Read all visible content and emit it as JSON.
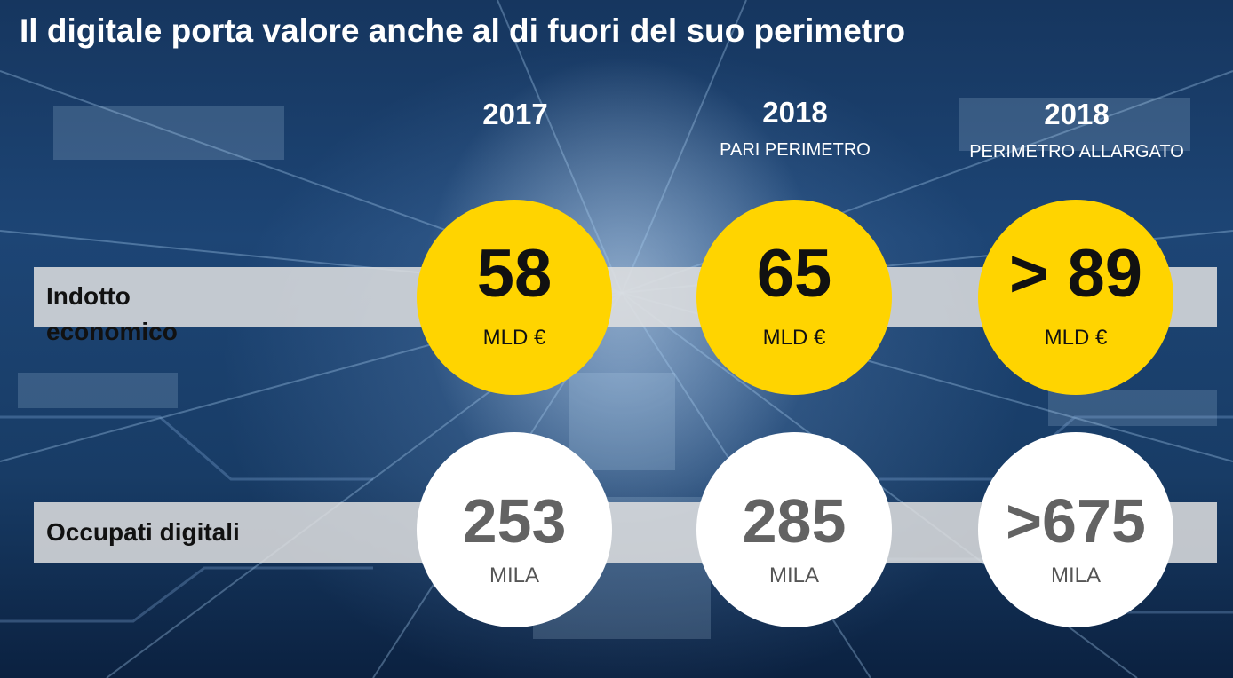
{
  "title": "Il digitale porta valore anche al di fuori del suo perimetro",
  "columns": [
    {
      "year": "2017",
      "subtitle": ""
    },
    {
      "year": "2018",
      "subtitle": "PARI PERIMETRO"
    },
    {
      "year": "2018",
      "subtitle": "PERIMETRO ALLARGATO"
    }
  ],
  "rows": [
    {
      "label_line1": "Indotto",
      "label_line2": "economico",
      "cells": [
        {
          "value": "58",
          "unit": "MLD €"
        },
        {
          "value": "65",
          "unit": "MLD €"
        },
        {
          "value": "> 89",
          "unit": "MLD €"
        }
      ]
    },
    {
      "label": "Occupati digitali",
      "cells": [
        {
          "value": "253",
          "unit": "MILA"
        },
        {
          "value": "285",
          "unit": "MILA"
        },
        {
          "value": ">675",
          "unit": "MILA"
        }
      ]
    }
  ],
  "colors": {
    "highlight": "#ffd400",
    "band": "#e1e1e1",
    "background": "#1d4575"
  }
}
